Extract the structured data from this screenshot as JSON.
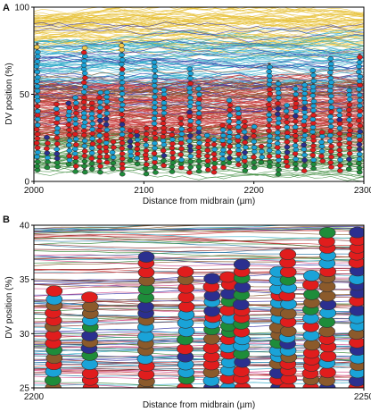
{
  "chart_data": [
    {
      "panel": "A",
      "type": "line",
      "xlabel": "Distance from midbrain (µm)",
      "ylabel": "DV position (%)",
      "xlim": [
        2000,
        2300
      ],
      "ylim": [
        0,
        100
      ],
      "xticks": [
        "2000",
        "2100",
        "2200",
        "2300"
      ],
      "yticks": [
        "0",
        "50",
        "100"
      ],
      "line_bands": [
        {
          "color": "#e8c23a",
          "y_range": [
            78,
            98
          ]
        },
        {
          "color": "#2aa8c8",
          "y_range": [
            55,
            80
          ]
        },
        {
          "color": "#c83a3a",
          "y_range": [
            25,
            55
          ]
        },
        {
          "color": "#3a8a3a",
          "y_range": [
            5,
            25
          ]
        },
        {
          "color": "#3a3aa8",
          "y_range": [
            30,
            95
          ]
        },
        {
          "color": "#8a5a2a",
          "y_range": [
            20,
            60
          ]
        }
      ],
      "marker_columns_x": [
        2003,
        2012,
        2021,
        2032,
        2038,
        2046,
        2053,
        2060,
        2066,
        2072,
        2080,
        2088,
        2094,
        2102,
        2110,
        2118,
        2126,
        2134,
        2142,
        2150,
        2158,
        2164,
        2172,
        2178,
        2186,
        2192,
        2200,
        2207,
        2214,
        2222,
        2230,
        2238,
        2246,
        2254,
        2262,
        2270,
        2278,
        2287,
        2296
      ],
      "marker_colors": {
        "yellow": "#f2c94c",
        "cyan": "#1aa3d8",
        "red": "#e01d1d",
        "green": "#1e8c3a",
        "brown": "#8b5a2b",
        "navy": "#2b2f8f"
      }
    },
    {
      "panel": "B",
      "type": "line",
      "xlabel": "Distance from midbrain (µm)",
      "ylabel": "DV position (%)",
      "xlim": [
        2200,
        2250
      ],
      "ylim": [
        25,
        40
      ],
      "xticks": [
        "2200",
        "2250"
      ],
      "yticks": [
        "25",
        "30",
        "35",
        "40"
      ],
      "marker_columns_x": [
        2203,
        2208.5,
        2217,
        2223,
        2227,
        2229.5,
        2231.5,
        2237,
        2238.5,
        2242,
        2244.5,
        2249
      ],
      "marker_colors": {
        "cyan": "#1aa3d8",
        "red": "#e01d1d",
        "brown": "#8b5a2b",
        "navy": "#2b2f8f",
        "green": "#1e8c3a"
      }
    }
  ]
}
